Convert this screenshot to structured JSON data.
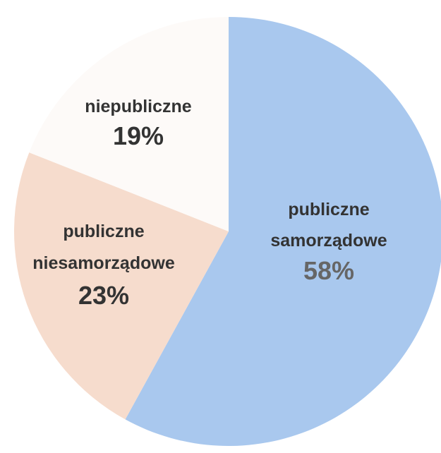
{
  "chart_data": {
    "type": "pie",
    "title": "",
    "legend": "none",
    "start_angle_deg": 0,
    "direction": "clockwise",
    "slices": [
      {
        "id": "samorzadowe",
        "label_lines": [
          "publiczne",
          "samorządowe"
        ],
        "value": 58,
        "value_label": "58%",
        "color": "#a9c8ee"
      },
      {
        "id": "niesamorzadowe",
        "label_lines": [
          "publiczne",
          "niesamorządowe"
        ],
        "value": 23,
        "value_label": "23%",
        "color": "#f6dccd"
      },
      {
        "id": "niepubliczne",
        "label_lines": [
          "niepubliczne"
        ],
        "value": 19,
        "value_label": "19%",
        "color": "#fdfaf8"
      }
    ]
  }
}
